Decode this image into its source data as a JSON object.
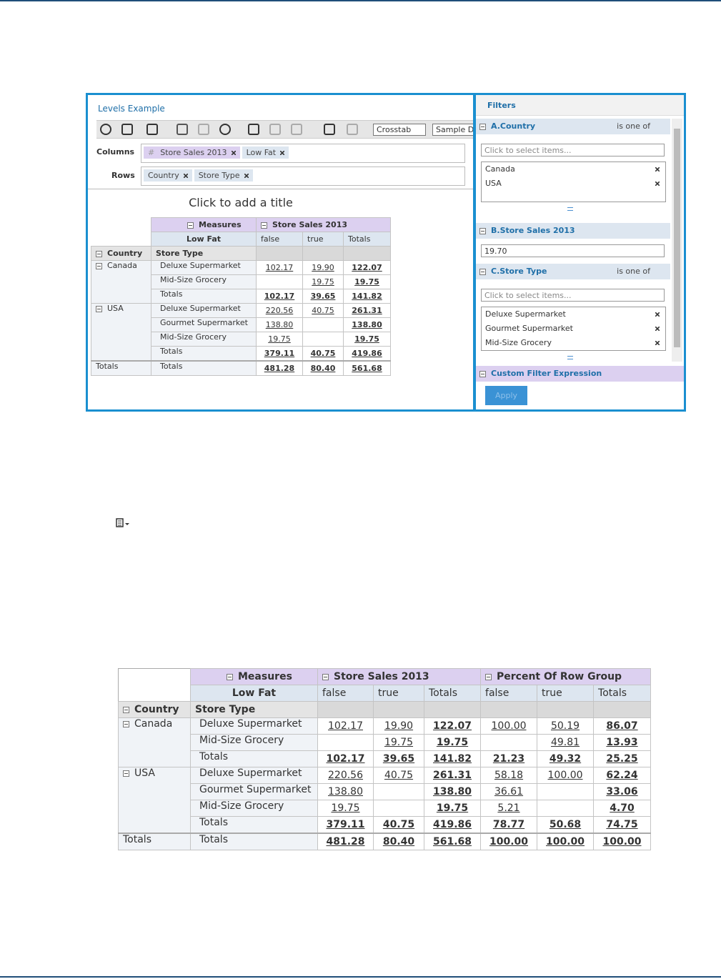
{
  "screenshot": {
    "title": "Levels Example",
    "toolbar": {
      "view_type": "Crosstab",
      "data_source": "Sample D"
    },
    "columns_label": "Columns",
    "measure_icon": "#",
    "column_chips": [
      "Store Sales 2013",
      "Low Fat"
    ],
    "rows_label": "Rows",
    "row_chips": [
      "Country",
      "Store Type"
    ],
    "report_title": "Click to add a title",
    "table": {
      "header": {
        "measures": "Measures",
        "low_fat": "Low Fat",
        "country": "Country",
        "store_type": "Store Type",
        "groups": [
          {
            "name": "Store Sales 2013",
            "columns": [
              "false",
              "true",
              "Totals"
            ]
          }
        ]
      },
      "groups": [
        {
          "country": "Canada",
          "rows": [
            {
              "store_type": "Deluxe Supermarket",
              "values": [
                "102.17",
                "19.90",
                "122.07"
              ]
            },
            {
              "store_type": "Mid-Size Grocery",
              "values": [
                null,
                "19.75",
                "19.75"
              ]
            },
            {
              "store_type": "Totals",
              "values": [
                "102.17",
                "39.65",
                "141.82"
              ]
            }
          ]
        },
        {
          "country": "USA",
          "rows": [
            {
              "store_type": "Deluxe Supermarket",
              "values": [
                "220.56",
                "40.75",
                "261.31"
              ]
            },
            {
              "store_type": "Gourmet Supermarket",
              "values": [
                "138.80",
                null,
                "138.80"
              ]
            },
            {
              "store_type": "Mid-Size Grocery",
              "values": [
                "19.75",
                null,
                "19.75"
              ]
            },
            {
              "store_type": "Totals",
              "values": [
                "379.11",
                "40.75",
                "419.86"
              ]
            }
          ]
        },
        {
          "country": "Totals",
          "rows": [
            {
              "store_type": "Totals",
              "values": [
                "481.28",
                "80.40",
                "561.68"
              ]
            }
          ]
        }
      ]
    },
    "filters": {
      "title": "Filters",
      "country": {
        "name": "A.Country",
        "operator": "is one of",
        "placeholder": "Click to select items...",
        "selected": [
          "Canada",
          "USA"
        ]
      },
      "sales": {
        "name": "B.Store Sales 2013",
        "value": "19.70"
      },
      "store_type": {
        "name": "C.Store Type",
        "operator": "is one of",
        "placeholder": "Click to select items...",
        "selected": [
          "Deluxe Supermarket",
          "Gourmet Supermarket",
          "Mid-Size Grocery"
        ]
      },
      "custom": "Custom Filter Expression",
      "apply": "Apply"
    }
  },
  "table": {
    "header": {
      "measures": "Measures",
      "low_fat": "Low Fat",
      "country": "Country",
      "store_type": "Store Type",
      "groups": [
        {
          "name": "Store Sales 2013",
          "columns": [
            "false",
            "true",
            "Totals"
          ]
        },
        {
          "name": "Percent Of Row Group",
          "columns": [
            "false",
            "true",
            "Totals"
          ]
        }
      ]
    },
    "groups": [
      {
        "country": "Canada",
        "rows": [
          {
            "store_type": "Deluxe Supermarket",
            "values": [
              "102.17",
              "19.90",
              "122.07",
              "100.00",
              "50.19",
              "86.07"
            ]
          },
          {
            "store_type": "Mid-Size Grocery",
            "values": [
              null,
              "19.75",
              "19.75",
              null,
              "49.81",
              "13.93"
            ]
          },
          {
            "store_type": "Totals",
            "values": [
              "102.17",
              "39.65",
              "141.82",
              "21.23",
              "49.32",
              "25.25"
            ]
          }
        ]
      },
      {
        "country": "USA",
        "rows": [
          {
            "store_type": "Deluxe Supermarket",
            "values": [
              "220.56",
              "40.75",
              "261.31",
              "58.18",
              "100.00",
              "62.24"
            ]
          },
          {
            "store_type": "Gourmet Supermarket",
            "values": [
              "138.80",
              null,
              "138.80",
              "36.61",
              null,
              "33.06"
            ]
          },
          {
            "store_type": "Mid-Size Grocery",
            "values": [
              "19.75",
              null,
              "19.75",
              "5.21",
              null,
              "4.70"
            ]
          },
          {
            "store_type": "Totals",
            "values": [
              "379.11",
              "40.75",
              "419.86",
              "78.77",
              "50.68",
              "74.75"
            ]
          }
        ]
      },
      {
        "country": "Totals",
        "rows": [
          {
            "store_type": "Totals",
            "values": [
              "481.28",
              "80.40",
              "561.68",
              "100.00",
              "100.00",
              "100.00"
            ]
          }
        ]
      }
    ]
  }
}
